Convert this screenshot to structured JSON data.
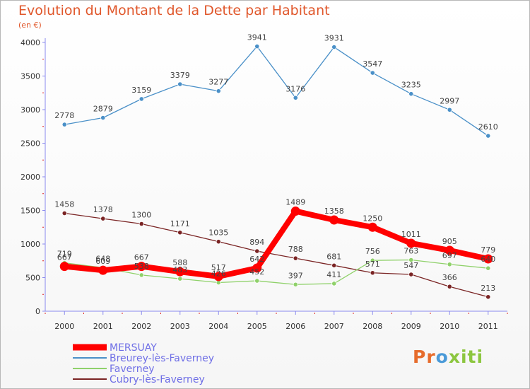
{
  "title": "Evolution du Montant de la Dette par Habitant",
  "unit": "(en €)",
  "logo": "Proxiti",
  "chart_data": {
    "type": "line",
    "title": "Evolution du Montant de la Dette par Habitant",
    "ylabel": "(en €)",
    "x": [
      "2000",
      "2001",
      "2002",
      "2003",
      "2004",
      "2005",
      "2006",
      "2007",
      "2008",
      "2009",
      "2010",
      "2011"
    ],
    "ylim": [
      0,
      4000
    ],
    "yticks": [
      0,
      500,
      1000,
      1500,
      2000,
      2500,
      3000,
      3500,
      4000
    ],
    "grid": false,
    "legend_position": "bottom-left",
    "series": [
      {
        "name": "MERSUAY",
        "color": "#ff0000",
        "values": [
          667,
          609,
          667,
          588,
          517,
          642,
          1489,
          1358,
          1250,
          1011,
          905,
          779
        ]
      },
      {
        "name": "Breurey-lès-Faverney",
        "color": "#4a90c8",
        "values": [
          2778,
          2879,
          3159,
          3379,
          3277,
          3941,
          3176,
          3931,
          3547,
          3235,
          2997,
          2610
        ]
      },
      {
        "name": "Faverney",
        "color": "#8fd16a",
        "values": [
          719,
          648,
          538,
          483,
          426,
          452,
          397,
          411,
          756,
          763,
          697,
          640
        ]
      },
      {
        "name": "Cubry-lès-Faverney",
        "color": "#7a2424",
        "values": [
          1458,
          1378,
          1300,
          1171,
          1035,
          894,
          788,
          681,
          571,
          547,
          366,
          213
        ]
      }
    ]
  }
}
